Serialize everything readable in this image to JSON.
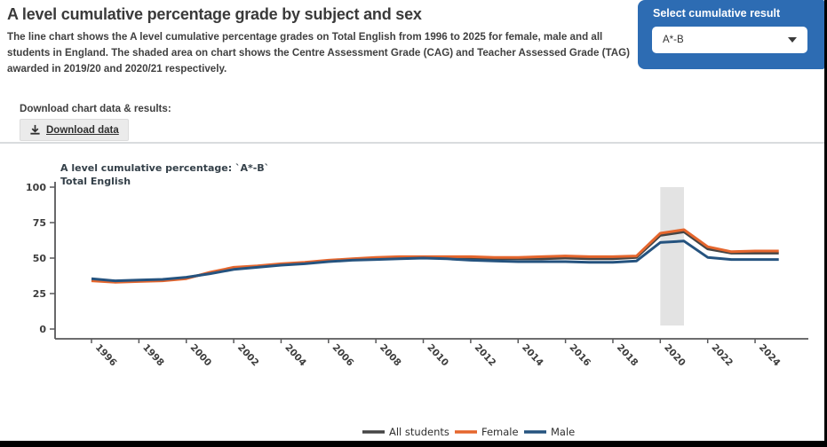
{
  "header": {
    "title": "A level cumulative percentage grade by subject and sex",
    "description": "The line chart shows the A level cumulative percentage grades on Total English from 1996 to 2025 for female, male and all students in England. The shaded area on chart shows the Centre Assessment Grade (CAG) and Teacher Assessed Grade (TAG) awarded in 2019/20 and 2020/21 respectively."
  },
  "selector": {
    "label": "Select cumulative result",
    "value": "A*-B",
    "panel_color": "#2d6cb3"
  },
  "download": {
    "label": "Download chart data & results:",
    "button_label": "Download data"
  },
  "chart_data": {
    "type": "line",
    "title_line1": "A level cumulative percentage: `A*-B`",
    "title_line2": "Total English",
    "ylim": [
      0,
      100
    ],
    "yticks": [
      0,
      25,
      50,
      75,
      100
    ],
    "xticks": [
      1996,
      1998,
      2000,
      2002,
      2004,
      2006,
      2008,
      2010,
      2012,
      2014,
      2016,
      2018,
      2020,
      2022,
      2024
    ],
    "x": [
      1996,
      1997,
      1998,
      1999,
      2000,
      2001,
      2002,
      2003,
      2004,
      2005,
      2006,
      2007,
      2008,
      2009,
      2010,
      2011,
      2012,
      2013,
      2014,
      2015,
      2016,
      2017,
      2018,
      2019,
      2020,
      2021,
      2022,
      2023,
      2024,
      2025
    ],
    "series": [
      {
        "name": "All students",
        "color": "#454545",
        "values": [
          34.5,
          33.5,
          34,
          34.5,
          36,
          39.5,
          43,
          44,
          45.5,
          46.5,
          48,
          49,
          50,
          50.5,
          50.5,
          50.5,
          50,
          49.5,
          49.5,
          49.5,
          50,
          49.5,
          49.5,
          50.5,
          66,
          68.5,
          56.5,
          53.5,
          53.5,
          53.5
        ]
      },
      {
        "name": "Female",
        "color": "#e5662d",
        "values": [
          34,
          33,
          33.5,
          34,
          35.5,
          40,
          43.5,
          44.5,
          46,
          47,
          48.5,
          49.5,
          50.5,
          51,
          51,
          51,
          51,
          50.5,
          50.5,
          51,
          51.5,
          51,
          51,
          51.5,
          67.5,
          70,
          58,
          54.5,
          55,
          55
        ]
      },
      {
        "name": "Male",
        "color": "#25537f",
        "values": [
          35.5,
          34,
          34.5,
          35,
          36.5,
          39,
          42,
          43.5,
          45,
          46,
          47.5,
          48.5,
          49,
          49.5,
          50,
          49.5,
          48.5,
          48,
          47.5,
          47.5,
          47.5,
          47,
          47,
          48,
          61,
          62,
          50.5,
          49,
          49,
          49
        ]
      }
    ],
    "band": {
      "x_from": 2020,
      "x_to": 2021,
      "color": "#e3e3e3"
    },
    "legend": [
      {
        "name": "All students",
        "color": "#454545"
      },
      {
        "name": "Female",
        "color": "#e5662d"
      },
      {
        "name": "Male",
        "color": "#25537f"
      }
    ],
    "legend_position": "bottom-center",
    "grid": false
  }
}
